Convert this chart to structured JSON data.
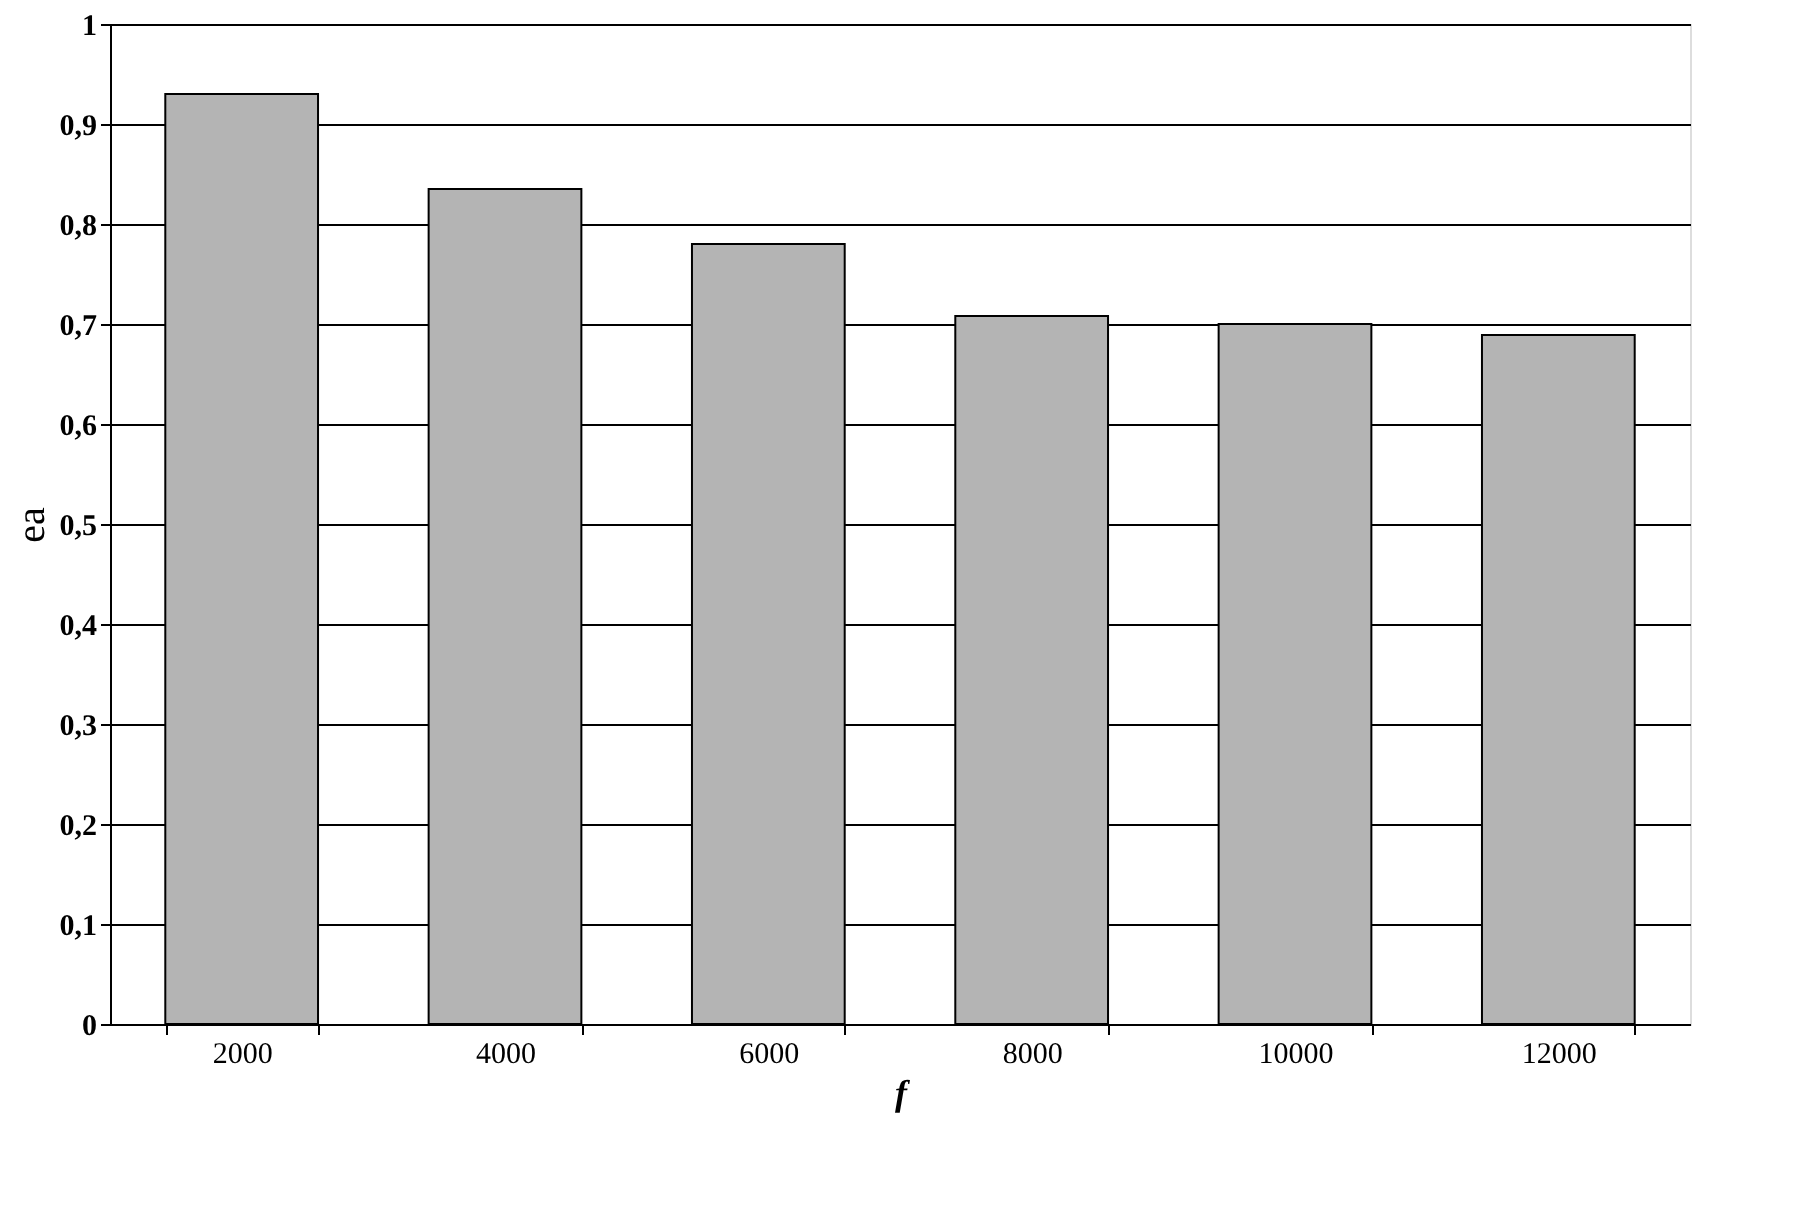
{
  "chart_data": {
    "type": "bar",
    "categories": [
      "2000",
      "4000",
      "6000",
      "8000",
      "10000",
      "12000"
    ],
    "values": [
      0.93,
      0.835,
      0.78,
      0.708,
      0.7,
      0.689
    ],
    "color": "#b4b4b4",
    "xlabel": "f",
    "ylabel": "ea",
    "ylim": [
      0,
      1
    ],
    "yticks": [
      {
        "value": 0,
        "label": "0"
      },
      {
        "value": 0.1,
        "label": "0,1"
      },
      {
        "value": 0.2,
        "label": "0,2"
      },
      {
        "value": 0.3,
        "label": "0,3"
      },
      {
        "value": 0.4,
        "label": "0,4"
      },
      {
        "value": 0.5,
        "label": "0,5"
      },
      {
        "value": 0.6,
        "label": "0,6"
      },
      {
        "value": 0.7,
        "label": "0,7"
      },
      {
        "value": 0.8,
        "label": "0,8"
      },
      {
        "value": 0.9,
        "label": "0,9"
      },
      {
        "value": 1,
        "label": "1"
      }
    ],
    "grid": "y"
  }
}
